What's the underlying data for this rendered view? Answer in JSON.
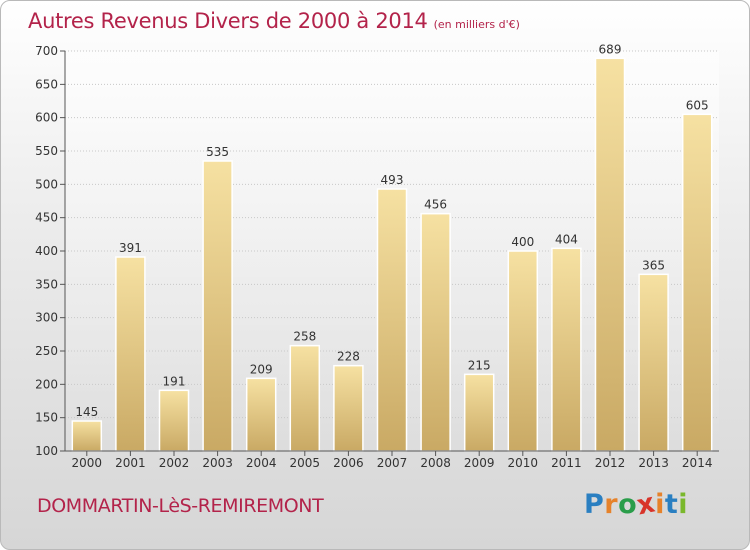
{
  "header": {
    "title": "Autres Revenus Divers de 2000 à 2014",
    "subtitle": "(en milliers d'€)"
  },
  "footer": {
    "city": "DOMMARTIN-LèS-REMIREMONT",
    "brand_letters": [
      {
        "char": "P",
        "color": "#2a7fc1"
      },
      {
        "char": "r",
        "color": "#e6822a"
      },
      {
        "char": "o",
        "color": "#2a9d4a"
      },
      {
        "char": "x",
        "color": "#d8342a"
      },
      {
        "char": "i",
        "color": "#e6822a"
      },
      {
        "char": "t",
        "color": "#2a7fc1"
      },
      {
        "char": "i",
        "color": "#7ab82c"
      }
    ]
  },
  "colors": {
    "title": "#b3234a",
    "bar_top": "#f6e1a2",
    "bar_bottom": "#c9a964",
    "grid": "#c8c8c8",
    "axis_text": "#333333"
  },
  "chart_data": {
    "type": "bar",
    "title": "Autres Revenus Divers de 2000 à 2014",
    "subtitle": "(en milliers d'€)",
    "xlabel": "",
    "ylabel": "",
    "categories": [
      "2000",
      "2001",
      "2002",
      "2003",
      "2004",
      "2005",
      "2006",
      "2007",
      "2008",
      "2009",
      "2010",
      "2011",
      "2012",
      "2013",
      "2014"
    ],
    "values": [
      145,
      391,
      191,
      535,
      209,
      258,
      228,
      493,
      456,
      215,
      400,
      404,
      689,
      365,
      605
    ],
    "ylim": [
      100,
      700
    ],
    "yticks": [
      100,
      150,
      200,
      250,
      300,
      350,
      400,
      450,
      500,
      550,
      600,
      650,
      700
    ],
    "grid": true,
    "data_labels": true
  }
}
